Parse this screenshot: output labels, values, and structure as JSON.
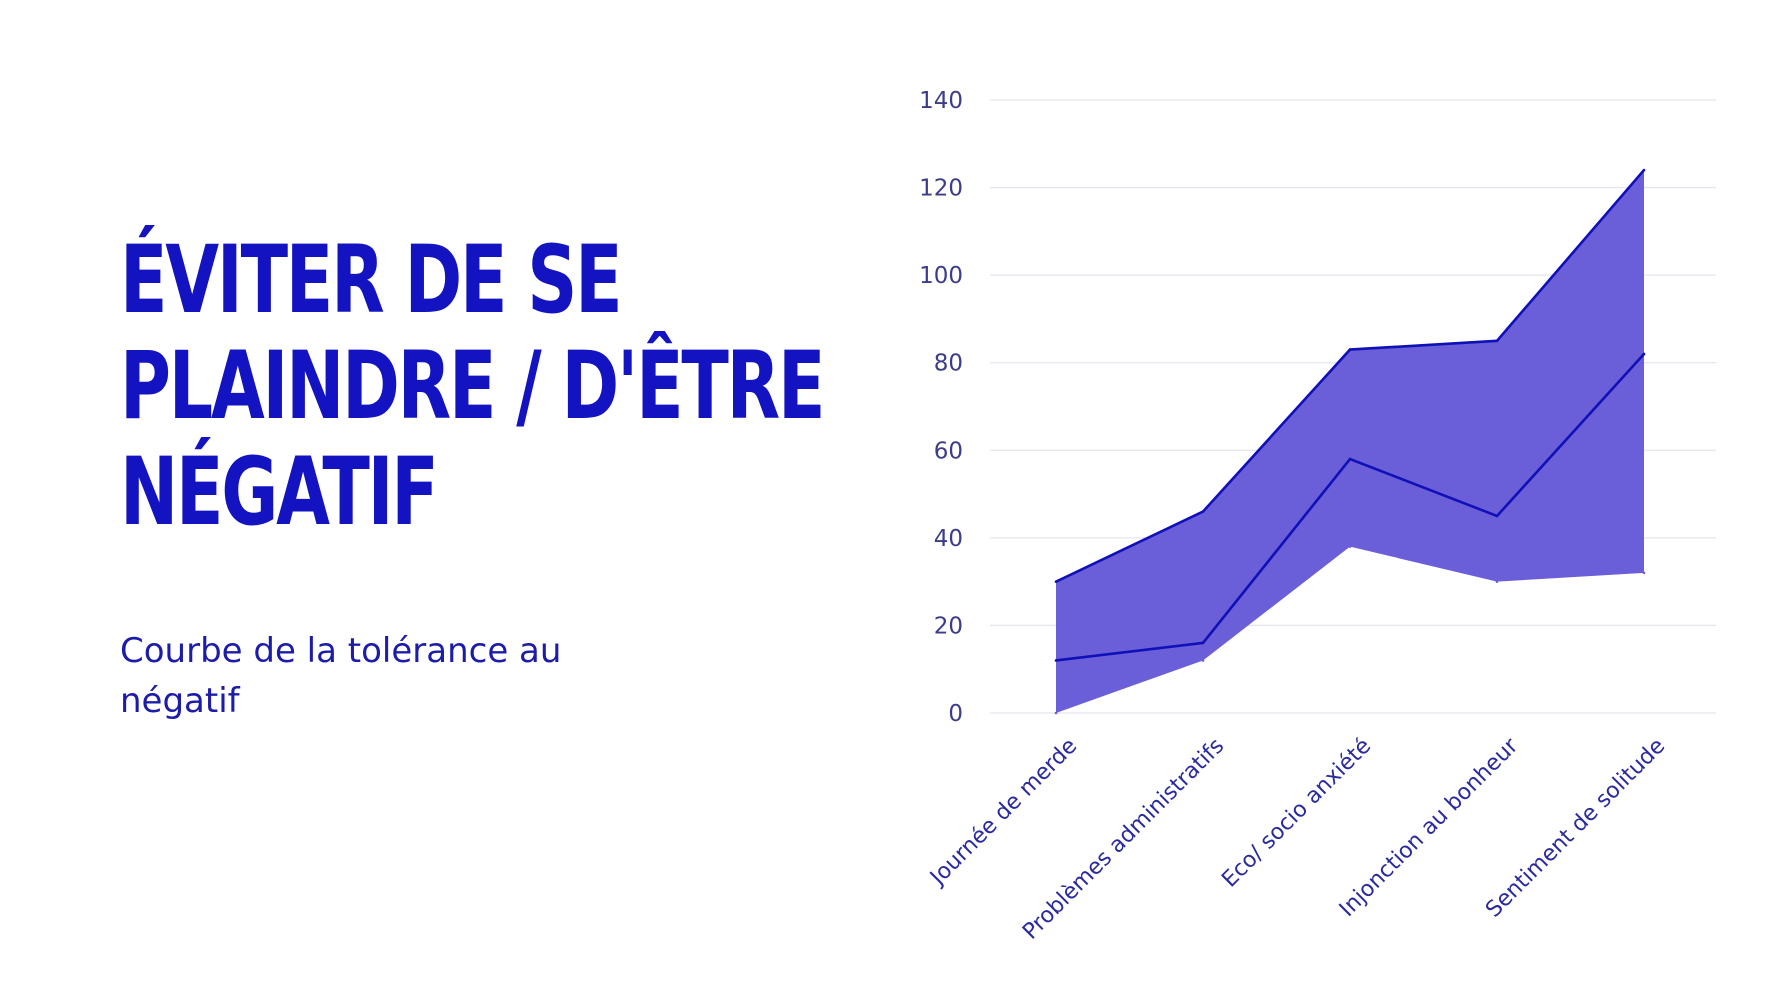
{
  "slide": {
    "title_lines": [
      "ÉVITER DE SE",
      "PLAINDRE / D'ÊTRE",
      "NÉGATIF"
    ],
    "subtitle": "Courbe de la tolérance au négatif"
  },
  "colors": {
    "title": "#1313c2",
    "band_fill": "#6a5fd8",
    "line": "#1010b8",
    "grid": "#e3e6ee",
    "axis_text": "#3c3c8a"
  },
  "chart_data": {
    "type": "area",
    "categories": [
      "Journée de merde",
      "Problèmes administratifs",
      "Eco/ socio anxiété",
      "Injonction au bonheur",
      "Sentiment de solitude"
    ],
    "series": [
      {
        "name": "upper",
        "values": [
          30,
          46,
          83,
          85,
          124
        ]
      },
      {
        "name": "middle",
        "values": [
          12,
          16,
          58,
          45,
          82
        ]
      },
      {
        "name": "lower",
        "values": [
          0,
          12,
          38,
          30,
          32
        ]
      }
    ],
    "ylim": [
      0,
      140
    ],
    "yticks": [
      0,
      20,
      40,
      60,
      80,
      100,
      120,
      140
    ],
    "grid": true,
    "title": "",
    "xlabel": "",
    "ylabel": ""
  }
}
